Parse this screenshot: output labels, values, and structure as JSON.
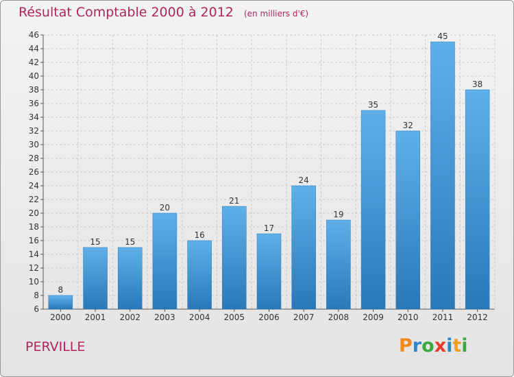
{
  "header": {
    "title": "Résultat Comptable 2000 à 2012",
    "unit": "(en milliers d'€)"
  },
  "footer": {
    "commune": "PERVILLE",
    "logo_text": "Proxiti",
    "logo_letters": [
      {
        "ch": "P",
        "color": "#f08a1c"
      },
      {
        "ch": "r",
        "color": "#2f86c9"
      },
      {
        "ch": "o",
        "color": "#3aa83a"
      },
      {
        "ch": "x",
        "color": "#e83a2a"
      },
      {
        "ch": "i",
        "color": "#2f86c9"
      },
      {
        "ch": "t",
        "color": "#f0a01c"
      },
      {
        "ch": "i",
        "color": "#3aa83a"
      }
    ]
  },
  "colors": {
    "accent_text": "#b0245c",
    "bar_top": "#5eb0ea",
    "bar_bottom": "#2a78b8"
  },
  "chart_data": {
    "type": "bar",
    "title": "Résultat Comptable 2000 à 2012",
    "subtitle": "(en milliers d'€)",
    "categories": [
      "2000",
      "2001",
      "2002",
      "2003",
      "2004",
      "2005",
      "2006",
      "2007",
      "2008",
      "2009",
      "2010",
      "2011",
      "2012"
    ],
    "values": [
      8,
      15,
      15,
      20,
      16,
      21,
      17,
      24,
      19,
      35,
      32,
      45,
      38
    ],
    "ylim": [
      6,
      46
    ],
    "ytick_step": 2,
    "grid": true,
    "data_labels": true,
    "xlabel": "",
    "ylabel": ""
  }
}
